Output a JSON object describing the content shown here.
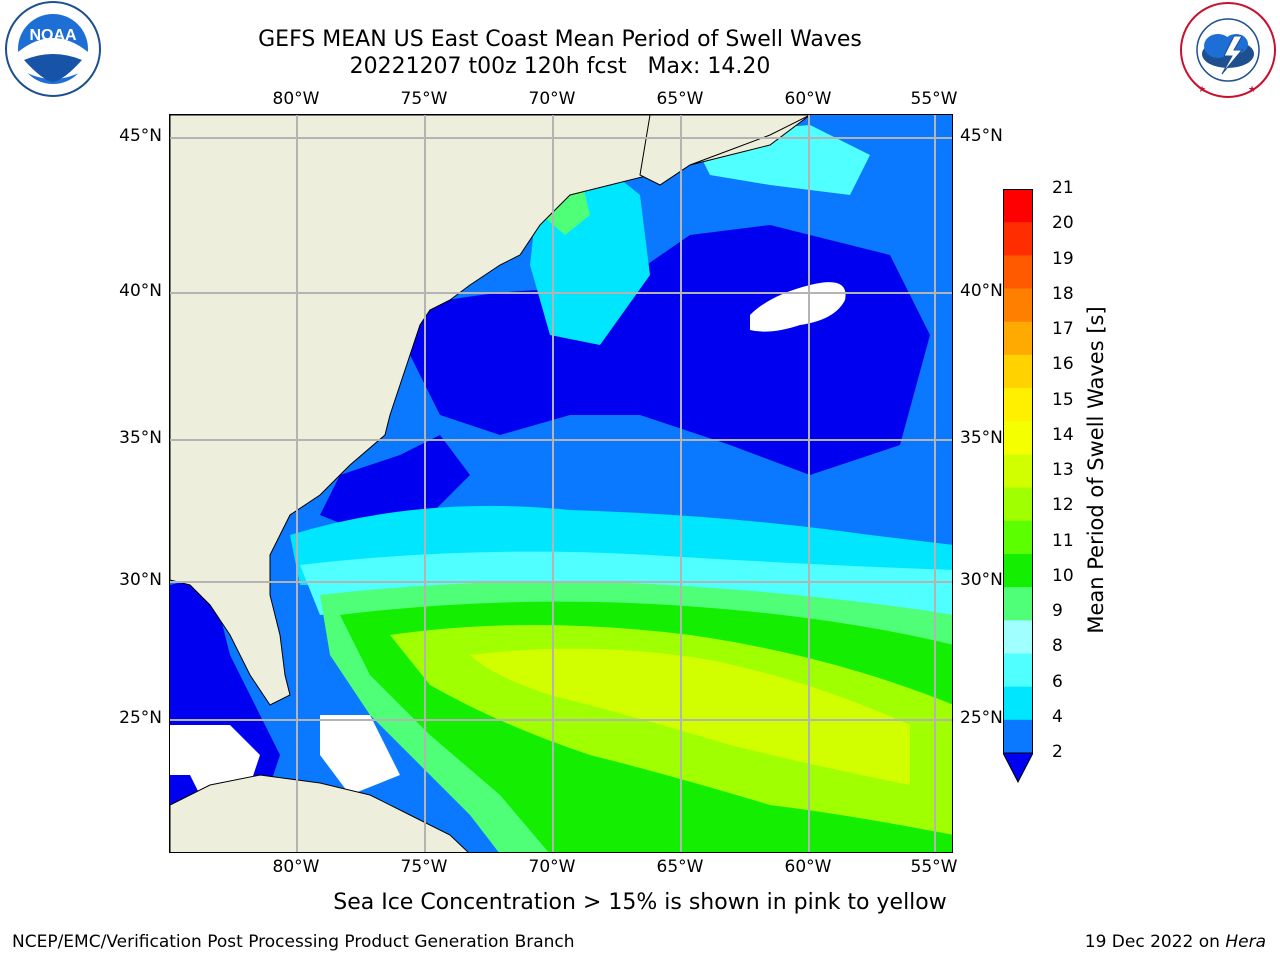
{
  "header": {
    "title_line1": "GEFS MEAN US East Coast Mean Period of Swell Waves",
    "title_line2": "20221207 t00z 120h fcst   Max: 14.20"
  },
  "logos": {
    "noaa": {
      "icon": "noaa-logo",
      "wordmark": "NOAA",
      "ring_text": "NATIONAL OCEANIC AND ATMOSPHERIC ADMINISTRATION · U.S. DEPARTMENT OF COMMERCE"
    },
    "nws": {
      "icon": "nws-logo",
      "ring_text": "NATIONAL WEATHER SERVICE"
    }
  },
  "map": {
    "lon_labels": [
      "80°W",
      "75°W",
      "70°W",
      "65°W",
      "60°W",
      "55°W"
    ],
    "lat_labels": [
      "45°N",
      "40°N",
      "35°N",
      "30°N",
      "25°N"
    ],
    "land_color": "#eeeedc",
    "grid_color": "#b4b4b4"
  },
  "colorbar": {
    "label": "Mean Period of Swell Waves [s]",
    "ticks": [
      "21",
      "20",
      "19",
      "18",
      "17",
      "16",
      "15",
      "14",
      "13",
      "12",
      "11",
      "10",
      "9",
      "8",
      "6",
      "4",
      "2"
    ],
    "colors": [
      "#ff0000",
      "#ff2d00",
      "#ff5a00",
      "#ff8000",
      "#ffaa00",
      "#ffd200",
      "#fff000",
      "#f5ff00",
      "#d2ff00",
      "#a0ff00",
      "#5cff00",
      "#14ee00",
      "#50ff78",
      "#a0ffff",
      "#50ffff",
      "#00e6ff",
      "#0a78ff"
    ],
    "extend_color": "#0000f0"
  },
  "footer": {
    "note": "Sea Ice Concentration > 15% is shown in pink to yellow",
    "credit": "NCEP/EMC/Verification Post Processing Product Generation Branch",
    "date": "19 Dec 2022 on",
    "host": "Hera"
  }
}
